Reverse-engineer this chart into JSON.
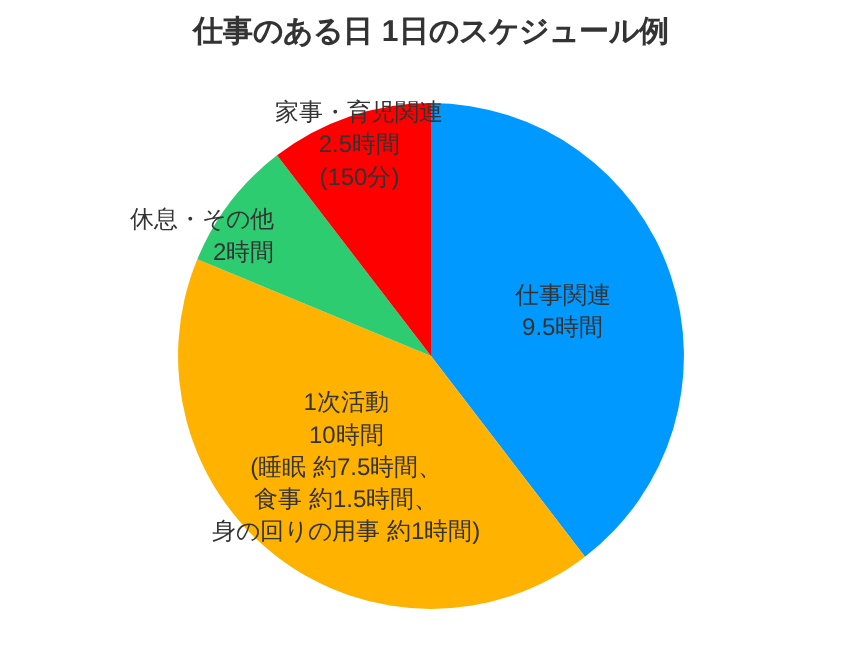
{
  "chart_data": {
    "type": "pie",
    "title": "仕事のある日 1日のスケジュール例",
    "categories": [
      "仕事関連",
      "1次活動",
      "休息・その他",
      "家事・育児関連"
    ],
    "values": [
      9.5,
      10,
      2,
      2.5
    ],
    "colors": [
      "#0099ff",
      "#ffb300",
      "#2ecc71",
      "#ff0000"
    ],
    "value_labels": [
      "9.5時間",
      "10時間(睡眠 約7.5時間、食事 約1.5時間、身の回りの用事 約1時間)",
      "2時間",
      "2.5時間(150分)"
    ]
  }
}
